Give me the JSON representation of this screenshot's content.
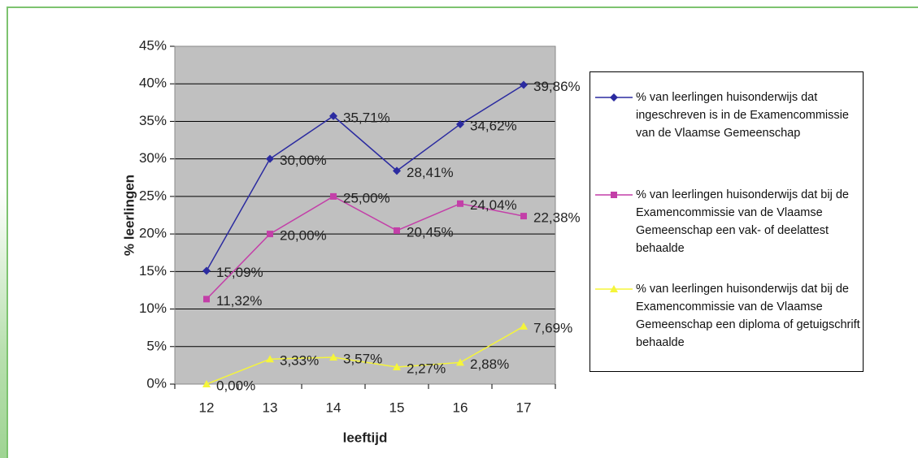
{
  "chart_data": {
    "type": "line",
    "xlabel": "leeftijd",
    "ylabel": "% leerlingen",
    "categories": [
      "12",
      "13",
      "14",
      "15",
      "16",
      "17"
    ],
    "ylim": [
      0,
      45
    ],
    "yticks": [
      {
        "value": 0,
        "label": "0%"
      },
      {
        "value": 5,
        "label": "5%"
      },
      {
        "value": 10,
        "label": "10%"
      },
      {
        "value": 15,
        "label": "15%"
      },
      {
        "value": 20,
        "label": "20%"
      },
      {
        "value": 25,
        "label": "25%"
      },
      {
        "value": 30,
        "label": "30%"
      },
      {
        "value": 35,
        "label": "35%"
      },
      {
        "value": 40,
        "label": "40%"
      },
      {
        "value": 45,
        "label": "45%"
      }
    ],
    "grid": true,
    "legend": "right",
    "series": [
      {
        "name": "% van leerlingen huisonderwijs dat ingeschreven is in de Examencommissie van de Vlaamse Gemeenschap",
        "color": "#2b2ba0",
        "marker": "diamond",
        "values": [
          15.09,
          30.0,
          35.71,
          28.41,
          34.62,
          39.86
        ],
        "value_labels": [
          "15,09%",
          "30,00%",
          "35,71%",
          "28,41%",
          "34,62%",
          "39,86%"
        ]
      },
      {
        "name": "% van leerlingen huisonderwijs dat bij de Examencommissie van de Vlaamse Gemeenschap een vak- of deelattest behaalde",
        "color": "#c33fa8",
        "marker": "square",
        "values": [
          11.32,
          20.0,
          25.0,
          20.45,
          24.04,
          22.38
        ],
        "value_labels": [
          "11,32%",
          "20,00%",
          "25,00%",
          "20,45%",
          "24,04%",
          "22,38%"
        ]
      },
      {
        "name": "% van leerlingen huisonderwijs dat bij de Examencommissie van de Vlaamse Gemeenschap een diploma of getuigschrift behaalde",
        "color": "#f5f53a",
        "marker": "triangle",
        "values": [
          0.0,
          3.33,
          3.57,
          2.27,
          2.88,
          7.69
        ],
        "value_labels": [
          "0,00%",
          "3,33%",
          "3,57%",
          "2,27%",
          "2,88%",
          "7,69%"
        ]
      }
    ]
  }
}
